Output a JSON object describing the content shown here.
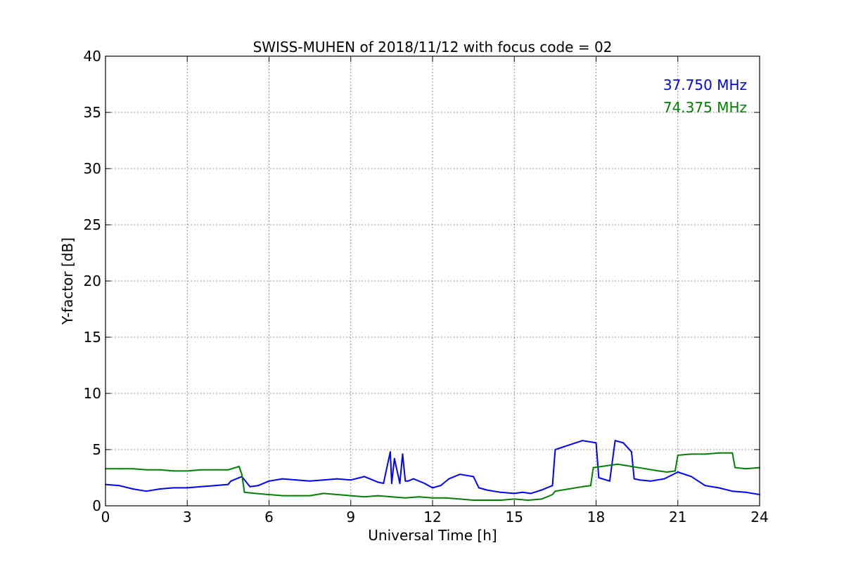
{
  "chart_data": {
    "type": "line",
    "title": "SWISS-MUHEN of 2018/11/12 with focus code = 02",
    "xlabel": "Universal Time [h]",
    "ylabel": "Y-factor [dB]",
    "xlim": [
      0,
      24
    ],
    "ylim": [
      0,
      40
    ],
    "xticks": [
      0,
      3,
      6,
      9,
      12,
      15,
      18,
      21,
      24
    ],
    "yticks": [
      0,
      5,
      10,
      15,
      20,
      25,
      30,
      35,
      40
    ],
    "grid": true,
    "legend_position": "top-right",
    "series": [
      {
        "name": "37.750 MHz",
        "color": "#0000ff",
        "x": [
          0,
          0.5,
          1.0,
          1.5,
          2.0,
          2.5,
          3.0,
          3.5,
          4.0,
          4.5,
          4.6,
          4.9,
          5.0,
          5.3,
          5.6,
          6.0,
          6.5,
          7.0,
          7.5,
          8.0,
          8.5,
          9.0,
          9.5,
          9.8,
          10.0,
          10.2,
          10.45,
          10.5,
          10.6,
          10.8,
          10.9,
          11.0,
          11.1,
          11.3,
          11.7,
          12.0,
          12.3,
          12.6,
          13.0,
          13.5,
          13.7,
          14.0,
          14.5,
          15.0,
          15.3,
          15.6,
          16.0,
          16.4,
          16.5,
          17.0,
          17.5,
          18.0,
          18.1,
          18.5,
          18.7,
          19.0,
          19.3,
          19.4,
          19.6,
          20.0,
          20.5,
          21.0,
          21.5,
          22.0,
          22.5,
          23.0,
          23.5,
          24.0
        ],
        "values": [
          1.9,
          1.8,
          1.5,
          1.3,
          1.5,
          1.6,
          1.6,
          1.7,
          1.8,
          1.9,
          2.2,
          2.5,
          2.6,
          1.7,
          1.8,
          2.2,
          2.4,
          2.3,
          2.2,
          2.3,
          2.4,
          2.3,
          2.6,
          2.3,
          2.1,
          2.0,
          4.8,
          2.0,
          4.2,
          2.0,
          4.6,
          2.2,
          2.2,
          2.4,
          2.0,
          1.6,
          1.8,
          2.4,
          2.8,
          2.6,
          1.6,
          1.4,
          1.2,
          1.1,
          1.2,
          1.1,
          1.4,
          1.8,
          5.0,
          5.4,
          5.8,
          5.6,
          2.5,
          2.2,
          5.8,
          5.6,
          4.8,
          2.4,
          2.3,
          2.2,
          2.4,
          3.0,
          2.6,
          1.8,
          1.6,
          1.3,
          1.2,
          1.0
        ]
      },
      {
        "name": "74.375 MHz",
        "color": "#008000",
        "x": [
          0,
          0.5,
          1.0,
          1.5,
          2.0,
          2.5,
          3.0,
          3.5,
          4.0,
          4.5,
          4.9,
          5.0,
          5.1,
          5.5,
          6.0,
          6.5,
          7.0,
          7.5,
          8.0,
          8.5,
          9.0,
          9.5,
          10.0,
          10.5,
          11.0,
          11.5,
          12.0,
          12.5,
          13.0,
          13.5,
          14.0,
          14.5,
          15.0,
          15.5,
          16.0,
          16.4,
          16.5,
          17.0,
          17.5,
          17.8,
          17.9,
          18.2,
          18.8,
          19.3,
          19.8,
          20.3,
          20.6,
          20.9,
          21.0,
          21.5,
          22.0,
          22.5,
          23.0,
          23.1,
          23.5,
          24.0
        ],
        "values": [
          3.3,
          3.3,
          3.3,
          3.2,
          3.2,
          3.1,
          3.1,
          3.2,
          3.2,
          3.2,
          3.5,
          2.8,
          1.2,
          1.1,
          1.0,
          0.9,
          0.9,
          0.9,
          1.1,
          1.0,
          0.9,
          0.8,
          0.9,
          0.8,
          0.7,
          0.8,
          0.7,
          0.7,
          0.6,
          0.5,
          0.5,
          0.5,
          0.6,
          0.5,
          0.6,
          1.0,
          1.3,
          1.5,
          1.7,
          1.8,
          3.4,
          3.5,
          3.7,
          3.5,
          3.3,
          3.1,
          3.0,
          3.1,
          4.5,
          4.6,
          4.6,
          4.7,
          4.7,
          3.4,
          3.3,
          3.4
        ]
      }
    ]
  }
}
